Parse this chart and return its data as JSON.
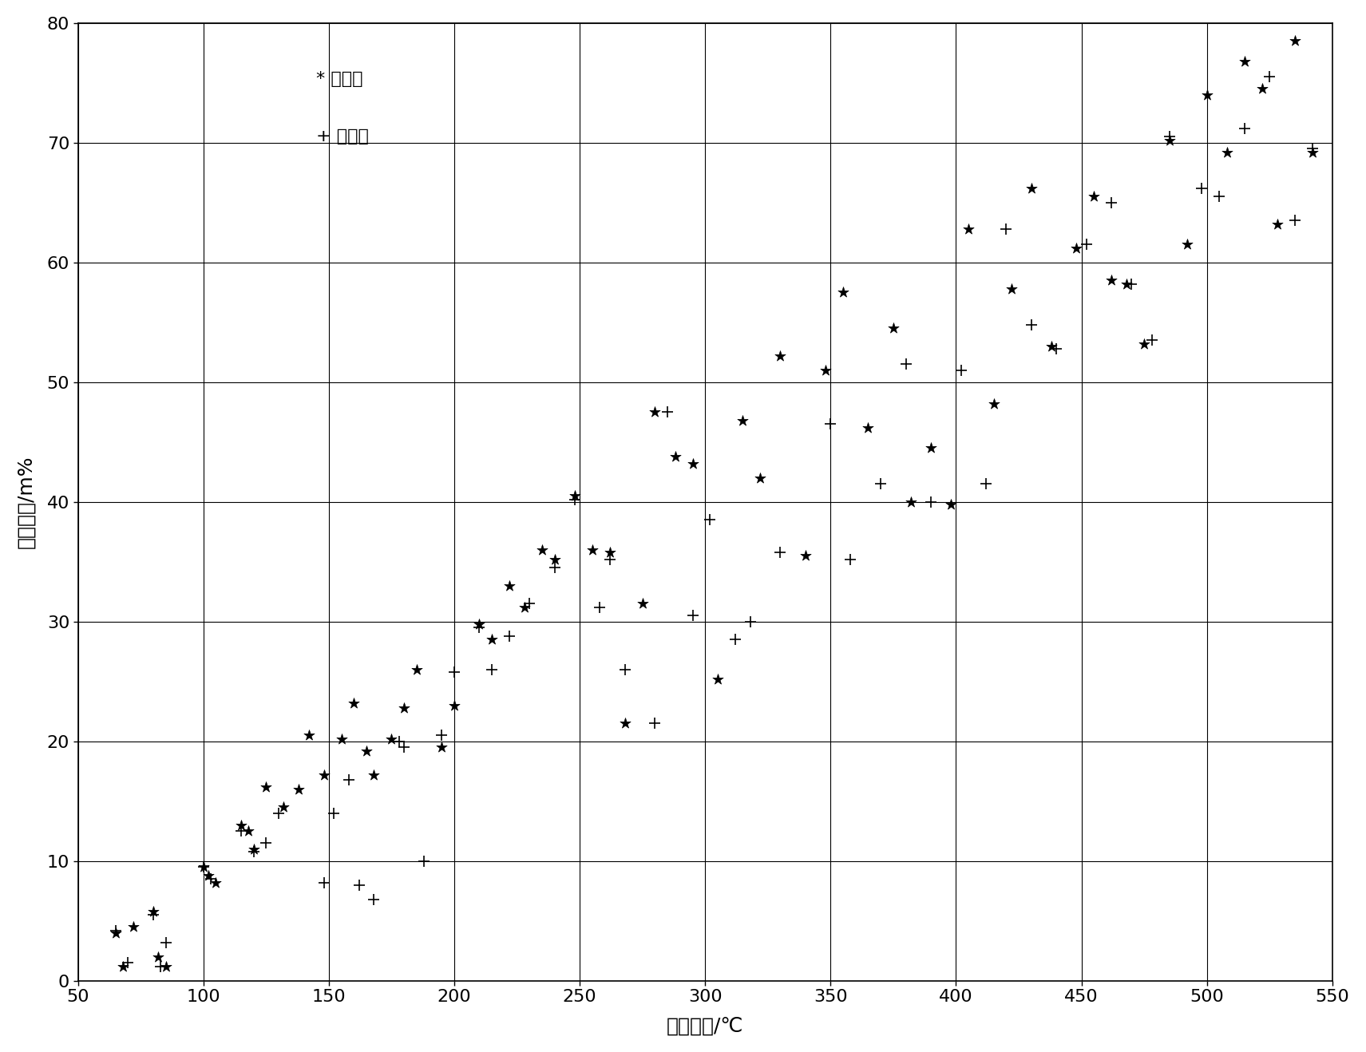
{
  "xlabel": "馏出温度/℃",
  "ylabel": "馏分收率/m%",
  "xlim": [
    50,
    550
  ],
  "ylim": [
    0,
    80
  ],
  "xticks": [
    50,
    100,
    150,
    200,
    250,
    300,
    350,
    400,
    450,
    500,
    550
  ],
  "yticks": [
    0,
    10,
    20,
    30,
    40,
    50,
    60,
    70,
    80
  ],
  "predicted_x": [
    65,
    68,
    72,
    80,
    82,
    85,
    100,
    102,
    105,
    115,
    118,
    120,
    125,
    132,
    138,
    142,
    148,
    155,
    160,
    165,
    168,
    175,
    180,
    185,
    195,
    200,
    210,
    215,
    222,
    228,
    235,
    240,
    248,
    255,
    262,
    268,
    275,
    280,
    288,
    295,
    305,
    315,
    322,
    330,
    340,
    348,
    355,
    365,
    375,
    382,
    390,
    398,
    405,
    415,
    422,
    430,
    438,
    448,
    455,
    462,
    468,
    475,
    485,
    492,
    500,
    508,
    515,
    522,
    528,
    535,
    542
  ],
  "predicted_y": [
    4.0,
    1.2,
    4.5,
    5.8,
    2.0,
    1.2,
    9.5,
    8.8,
    8.2,
    13.0,
    12.5,
    11.0,
    16.2,
    14.5,
    16.0,
    20.5,
    17.2,
    20.2,
    23.2,
    19.2,
    17.2,
    20.2,
    22.8,
    26.0,
    19.5,
    23.0,
    29.8,
    28.5,
    33.0,
    31.2,
    36.0,
    35.2,
    40.5,
    36.0,
    35.8,
    21.5,
    31.5,
    47.5,
    43.8,
    43.2,
    25.2,
    46.8,
    42.0,
    52.2,
    35.5,
    51.0,
    57.5,
    46.2,
    54.5,
    40.0,
    44.5,
    39.8,
    62.8,
    48.2,
    57.8,
    66.2,
    53.0,
    61.2,
    65.5,
    58.5,
    58.2,
    53.2,
    70.2,
    61.5,
    74.0,
    69.2,
    76.8,
    74.5,
    63.2,
    78.5,
    69.2
  ],
  "measured_x": [
    65,
    70,
    80,
    83,
    85,
    100,
    103,
    115,
    120,
    125,
    130,
    148,
    152,
    158,
    162,
    168,
    178,
    180,
    188,
    195,
    200,
    210,
    215,
    222,
    230,
    240,
    248,
    258,
    262,
    268,
    280,
    285,
    295,
    302,
    312,
    318,
    330,
    350,
    358,
    370,
    380,
    390,
    402,
    412,
    420,
    430,
    440,
    452,
    462,
    470,
    478,
    485,
    498,
    505,
    515,
    525,
    535,
    542
  ],
  "measured_y": [
    4.2,
    1.5,
    5.5,
    1.2,
    3.2,
    9.5,
    8.5,
    12.5,
    10.8,
    11.5,
    14.0,
    8.2,
    14.0,
    16.8,
    8.0,
    6.8,
    20.0,
    19.5,
    10.0,
    20.5,
    25.8,
    29.5,
    26.0,
    28.8,
    31.5,
    34.5,
    40.2,
    31.2,
    35.2,
    26.0,
    21.5,
    47.5,
    30.5,
    38.5,
    28.5,
    30.0,
    35.8,
    46.5,
    35.2,
    41.5,
    51.5,
    40.0,
    51.0,
    41.5,
    62.8,
    54.8,
    52.8,
    61.5,
    65.0,
    58.2,
    53.5,
    70.5,
    66.2,
    65.5,
    71.2,
    75.5,
    63.5,
    69.5
  ],
  "legend_predicted": "* 预测値",
  "legend_measured": "+ 实测値",
  "background_color": "#ffffff",
  "marker_color": "#000000"
}
